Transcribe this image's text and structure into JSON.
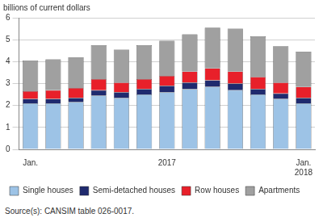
{
  "chart_data": {
    "type": "bar",
    "stacked": true,
    "y_label": "billions of current dollars",
    "source": "Source(s): CANSIM table 026-0017.",
    "categories": [
      "Jan.",
      null,
      null,
      null,
      null,
      null,
      "2017",
      null,
      null,
      null,
      null,
      null,
      "Jan. 2018"
    ],
    "series": [
      {
        "name": "Single houses",
        "color": "#9dc3e6",
        "values": [
          2.1,
          2.1,
          2.15,
          2.45,
          2.35,
          2.5,
          2.6,
          2.75,
          2.85,
          2.7,
          2.5,
          2.3,
          2.1
        ]
      },
      {
        "name": "Semi-detached houses",
        "color": "#1f2a6e",
        "values": [
          0.2,
          0.2,
          0.2,
          0.25,
          0.25,
          0.25,
          0.3,
          0.3,
          0.3,
          0.3,
          0.25,
          0.25,
          0.25
        ]
      },
      {
        "name": "Row houses",
        "color": "#e8202a",
        "values": [
          0.35,
          0.4,
          0.45,
          0.5,
          0.45,
          0.45,
          0.45,
          0.5,
          0.55,
          0.55,
          0.55,
          0.5,
          0.5
        ]
      },
      {
        "name": "Apartments",
        "color": "#a0a0a0",
        "values": [
          1.4,
          1.4,
          1.4,
          1.55,
          1.5,
          1.55,
          1.6,
          1.7,
          1.85,
          1.95,
          1.85,
          1.65,
          1.6
        ]
      }
    ],
    "ylim": [
      0,
      6
    ],
    "yticks": [
      0,
      1,
      2,
      3,
      4,
      5,
      6
    ],
    "grid": true,
    "legend": "bottom"
  }
}
